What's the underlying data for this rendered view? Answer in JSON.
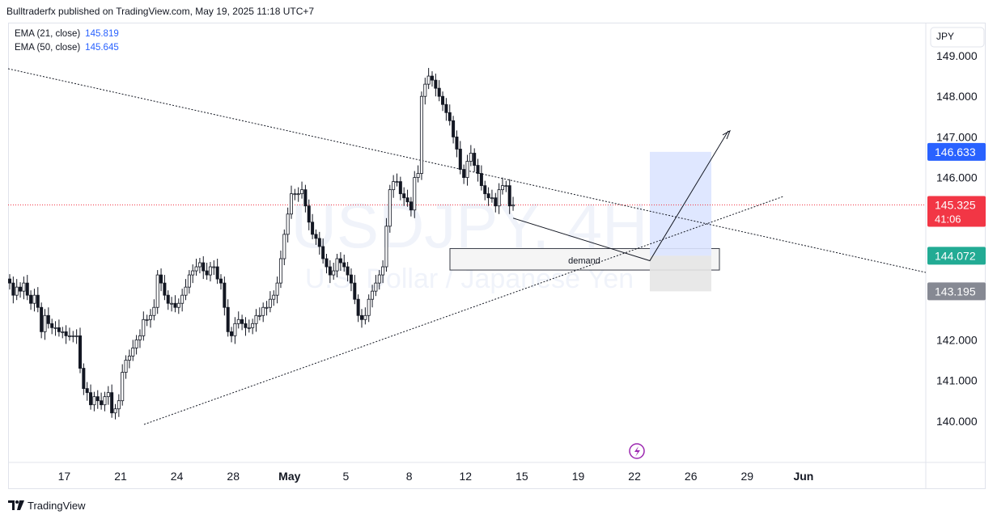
{
  "header": {
    "publisher_line": "Bulltraderfx published on TradingView.com, May 19, 2025 11:18 UTC+7"
  },
  "legend": [
    {
      "name": "EMA (21, close)",
      "value": "145.819"
    },
    {
      "name": "EMA (50, close)",
      "value": "145.645"
    }
  ],
  "footer": {
    "brand": "TradingView"
  },
  "colors": {
    "up": "#131722",
    "down": "#131722",
    "background": "#ffffff",
    "price_line": "#f23645",
    "target_box": "#dbe4ff",
    "stop_box": "#e6e6e6",
    "badge_target": "#2962ff",
    "badge_price": "#f23645",
    "badge_entry": "#22ab94",
    "badge_stop": "#868993",
    "watermark": "#f0f3fa"
  },
  "chart_data": {
    "type": "candlestick",
    "symbol": "USDJPY",
    "timeframe": "4H",
    "watermark_title": "USDJPY, 4H",
    "watermark_subtitle": "U.S. Dollar / Japanese Yen",
    "currency": "JPY",
    "y_ticks": [
      "149.000",
      "148.000",
      "147.000",
      "146.000",
      "142.000",
      "141.000",
      "140.000"
    ],
    "ylim": [
      139.0,
      149.6
    ],
    "x_ticks": [
      {
        "label": "17",
        "index": 4,
        "bold": false
      },
      {
        "label": "21",
        "index": 20,
        "bold": false
      },
      {
        "label": "24",
        "index": 36,
        "bold": false
      },
      {
        "label": "28",
        "index": 52,
        "bold": false
      },
      {
        "label": "May",
        "index": 68,
        "bold": true
      },
      {
        "label": "5",
        "index": 84,
        "bold": false
      },
      {
        "label": "8",
        "index": 102,
        "bold": false
      },
      {
        "label": "12",
        "index": 118,
        "bold": false
      },
      {
        "label": "15",
        "index": 134,
        "bold": false
      },
      {
        "label": "19",
        "index": 150,
        "bold": false
      },
      {
        "label": "22",
        "index": 166,
        "bold": false
      },
      {
        "label": "26",
        "index": 182,
        "bold": false
      },
      {
        "label": "29",
        "index": 198,
        "bold": false
      },
      {
        "label": "Jun",
        "index": 214,
        "bold": true
      }
    ],
    "badges": [
      {
        "text": "146.633",
        "price": 146.633,
        "role": "target"
      },
      {
        "text": "145.325",
        "sub": "41:06",
        "price": 145.325,
        "role": "price"
      },
      {
        "text": "144.072",
        "price": 144.072,
        "role": "entry"
      },
      {
        "text": "143.195",
        "price": 143.195,
        "role": "stop"
      }
    ],
    "current_price": 145.325,
    "closes": [
      143.4,
      143.1,
      143.3,
      143.2,
      143.4,
      143.1,
      142.9,
      143.1,
      142.8,
      142.2,
      142.6,
      142.4,
      142.3,
      142.3,
      142.2,
      142.2,
      142.1,
      142.1,
      142.1,
      142.1,
      141.3,
      140.8,
      140.7,
      140.4,
      140.6,
      140.5,
      140.4,
      140.6,
      140.7,
      140.2,
      140.3,
      140.5,
      141.2,
      141.5,
      141.6,
      141.8,
      142.0,
      142.1,
      142.5,
      142.5,
      142.6,
      142.8,
      143.6,
      143.4,
      143.1,
      142.9,
      142.9,
      142.8,
      142.9,
      143.1,
      143.3,
      143.6,
      143.7,
      143.8,
      143.9,
      143.7,
      143.6,
      143.8,
      143.8,
      143.5,
      143.4,
      142.8,
      142.2,
      142.1,
      142.4,
      142.5,
      142.4,
      142.3,
      142.3,
      142.4,
      142.6,
      142.6,
      142.8,
      142.8,
      143.0,
      143.1,
      143.4,
      144.0,
      144.6,
      145.1,
      145.6,
      145.6,
      145.6,
      145.7,
      145.3,
      144.9,
      144.6,
      144.5,
      144.3,
      144.0,
      143.8,
      143.6,
      143.7,
      144.0,
      143.9,
      143.8,
      143.6,
      143.4,
      143.0,
      142.6,
      142.5,
      142.6,
      143.0,
      143.2,
      143.4,
      143.6,
      143.8,
      144.8,
      145.7,
      145.9,
      145.9,
      145.6,
      145.5,
      145.4,
      145.2,
      146.0,
      146.1,
      148.0,
      148.3,
      148.5,
      148.4,
      148.2,
      148.0,
      147.8,
      147.6,
      147.4,
      147.0,
      146.7,
      146.2,
      146.0,
      146.4,
      146.6,
      146.3,
      146.1,
      145.8,
      145.6,
      145.5,
      145.5,
      145.3,
      145.7,
      145.8,
      145.8,
      145.3,
      145.325
    ]
  }
}
